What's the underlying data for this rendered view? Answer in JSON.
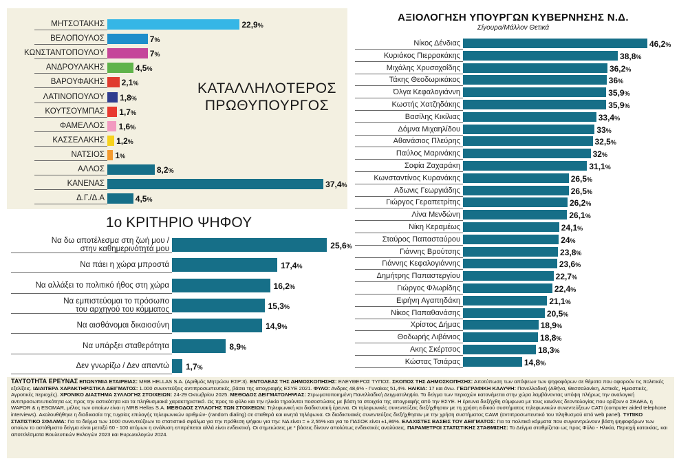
{
  "chart_data": [
    {
      "type": "bar",
      "title": "ΚΑΤΑΛΛΗΛΟΤΕΡΟΣ ΠΡΩΘΥΠΟΥΡΓΟΣ",
      "categories": [
        "ΜΗΤΣΟΤΑΚΗΣ",
        "ΒΕΛΟΠΟΥΛΟΣ",
        "ΚΩΝΣΤΑΝΤΟΠΟΥΛΟΥ",
        "ΑΝΔΡΟΥΛΑΚΗΣ",
        "ΒΑΡΟΥΦΑΚΗΣ",
        "ΛΑΤΙΝΟΠΟΥΛΟΥ",
        "ΚΟΥΤΣΟΥΜΠΑΣ",
        "ΦΑΜΕΛΛΟΣ",
        "ΚΑΣΣΕΛΑΚΗΣ",
        "ΝΑΤΣΙΟΣ",
        "ΑΛΛΟΣ",
        "ΚΑΝΕΝΑΣ",
        "Δ.Γ./Δ.Α"
      ],
      "values": [
        22.9,
        7,
        7,
        4.5,
        2.1,
        1.8,
        1.7,
        1.6,
        1.2,
        1,
        8.2,
        37.4,
        4.5
      ],
      "value_labels": [
        "22,9",
        "7",
        "7",
        "4,5",
        "2,1",
        "1,8",
        "1,7",
        "1,6",
        "1,2",
        "1",
        "8,2",
        "37,4",
        "4,5"
      ],
      "colors": [
        "#35b6e6",
        "#1f8ecb",
        "#c5459a",
        "#5fb34a",
        "#e03b2e",
        "#2f3d8f",
        "#e8392f",
        "#f29ac0",
        "#f7d21d",
        "#f39a2e",
        "#166f88",
        "#166f88",
        "#166f88"
      ],
      "ylim": [
        0,
        40
      ]
    },
    {
      "type": "bar",
      "title": "1ο ΚΡΙΤΗΡΙΟ ΨΗΦΟΥ",
      "categories": [
        "Να δω αποτέλεσμα στη ζωή μου / στην καθημερινότητά μου",
        "Να πάει η χώρα μπροστά",
        "Να αλλάξει το πολιτικό ήθος στη χώρα",
        "Να εμπιστεύομαι το πρόσωπο του αρχηγού του κόμματος",
        "Να αισθάνομαι δικαιοσύνη",
        "Να υπάρξει σταθερότητα",
        "Δεν γνωρίζω / Δεν απαντώ"
      ],
      "label_lines": [
        [
          "Να δω αποτέλεσμα στη ζωή μου /",
          "στην καθημερινότητά μου"
        ],
        [
          "Να πάει η χώρα μπροστά"
        ],
        [
          "Να αλλάξει το πολιτικό ήθος στη χώρα"
        ],
        [
          "Να εμπιστεύομαι το πρόσωπο",
          "του αρχηγού του κόμματος"
        ],
        [
          "Να αισθάνομαι δικαιοσύνη"
        ],
        [
          "Να υπάρξει σταθερότητα"
        ],
        [
          "Δεν γνωρίζω / Δεν απαντώ"
        ]
      ],
      "values": [
        25.6,
        17.4,
        16.2,
        15.3,
        14.9,
        8.9,
        1.7
      ],
      "value_labels": [
        "25,6",
        "17,4",
        "16,2",
        "15,3",
        "14,9",
        "8,9",
        "1,7"
      ],
      "color": "#166f88",
      "ylim": [
        0,
        30
      ]
    },
    {
      "type": "bar",
      "title": "ΑΞΙΟΛΟΓΗΣΗ ΥΠΟΥΡΓΩΝ ΚΥΒΕΡΝΗΣΗΣ Ν.Δ.",
      "subtitle": "Σίγουρα/Μάλλον Θετικά",
      "categories": [
        "Νίκος Δένδιας",
        "Κυριάκος Πιερρακάκης",
        "Μιχάλης Χρυσοχοΐδης",
        "Τάκης Θεοδωρικάκος",
        "Όλγα Κεφαλογιάννη",
        "Κωστής Χατζηδάκης",
        "Βασίλης Κικίλιας",
        "Δόμνα Μιχαηλίδου",
        "Αθανάσιος Πλεύρης",
        "Παύλος Μαρινάκης",
        "Σοφία Ζαχαράκη",
        "Κωνσταντίνος Κυρανάκης",
        "Αδωνις Γεωργιάδης",
        "Γιώργος Γεραπετρίτης",
        "Λίνα Μενδώνη",
        "Νίκη Κεραμέως",
        "Σταύρος Παπασταύρου",
        "Γιάννης Βρούτσης",
        "Γιάννης Κεφαλογιάννης",
        "Δημήτρης Παπαστεργίου",
        "Γιώργος Φλωρίδης",
        "Ειρήνη Αγαπηδάκη",
        "Νίκος Παπαθανάσης",
        "Χρίστος Δήμας",
        "Θοδωρής Λιβάνιος",
        "Ακης Σκέρτσος",
        "Κώστας Τσιάρας"
      ],
      "values": [
        46.2,
        38.8,
        36.2,
        36,
        35.9,
        35.9,
        33.4,
        33,
        32.5,
        32,
        31.1,
        26.5,
        26.5,
        26.2,
        26.1,
        24.1,
        24,
        23.8,
        23.6,
        22.7,
        22.4,
        21.1,
        20.5,
        18.9,
        18.8,
        18.3,
        14.8
      ],
      "value_labels": [
        "46,2",
        "38,8",
        "36,2",
        "36",
        "35,9",
        "35,9",
        "33,4",
        "33",
        "32,5",
        "32",
        "31,1",
        "26,5",
        "26,5",
        "26,2",
        "26,1",
        "24,1",
        "24",
        "23,8",
        "23,6",
        "22,7",
        "22,4",
        "21,1",
        "20,5",
        "18,9",
        "18,8",
        "18,3",
        "14,8"
      ],
      "color": "#166f88",
      "ylim": [
        0,
        50
      ]
    }
  ],
  "pct_sign": "%",
  "footer": {
    "heading": "ΤΑΥΤΟΤΗΤΑ ΕΡΕΥΝΑΣ",
    "segments": [
      [
        "b",
        "ΕΠΩΝΥΜΙΑ ΕΤΑΙΡΕΙΑΣ:"
      ],
      [
        "t",
        " MRB HELLAS S.A. (Αριθμός Μητρώου ΕΣΡ:3). "
      ],
      [
        "b",
        "ΕΝΤΟΛΕΑΣ ΤΗΣ ΔΗΜΟΣΚΟΠΗΣΗΣ:"
      ],
      [
        "t",
        " ΕΛΕΥΘΕΡΟΣ ΤΥΠΟΣ. "
      ],
      [
        "b",
        "ΣΚΟΠΟΣ ΤΗΣ ΔΗΜΟΣΚΟΠΗΣΗΣ:"
      ],
      [
        "t",
        " Αποτύπωση των απόψεων των ψηφοφόρων σε θέματα που αφορούν τις πολιτικές εξελίξεις. "
      ],
      [
        "b",
        "ΙΔΙΑΙΤΕΡΑ ΧΑΡΑΚΤΗΡΙΣΤΙΚΑ ΔΕΙΓΜΑΤΟΣ:"
      ],
      [
        "t",
        " 1.000 συνεντεύξεις αντιπροσωπευτικές, βάσει της απογραφής ΕΣΥΕ 2021. "
      ],
      [
        "b",
        "ΦΥΛΟ:"
      ],
      [
        "t",
        " Ανδρες 48,6% - Γυναίκες 51,4%. "
      ],
      [
        "b",
        "ΗΛΙΚΙΑ:"
      ],
      [
        "t",
        " 17 και άνω. "
      ],
      [
        "b",
        "ΓΕΩΓΡΑΦΙΚΗ ΚΑΛΥΨΗ:"
      ],
      [
        "t",
        " Πανελλαδική (Αθήνα, Θεσσαλονίκη, Αστικές, Ημιαστικές, Αγροτικές περιοχές). "
      ],
      [
        "b",
        "ΧΡΟΝΙΚΟ ΔΙΑΣΤΗΜΑ ΣΥΛΛΟΓΗΣ ΣΤΟΙΧΕΙΩΝ:"
      ],
      [
        "t",
        " 24-29 Οκτωβρίου 2025. "
      ],
      [
        "b",
        "ΜΕΘΟΔΟΣ ΔΕΙΓΜΑΤΟΛΗΨΙΑΣ:"
      ],
      [
        "t",
        " Στρωματοποιημένη Πανελλαδική Δειγματοληψία. Το δείγμα των περιοχών κατανέμεται στην χώρα λαμβάνοντας υπόψη πλήρως την αναλογική αντιπροσωπευτικότητα ως προς την αστικότητα και τα πληθυσμιακά χαρακτηριστικά. Ως προς το φύλο και την ηλικία τηρούνται ποσοστώσεις με βάση τα στοιχεία της απογραφής από την ΕΣΥΕ. Η έρευνα διεξήχθη σύμφωνα με τους κανόνες δεοντολογίας που ορίζουν ο ΣΕΔΕΑ, η WAPOR & η ESOMAR, μέλος των οποίων είναι η MRB Hellas S.A. "
      ],
      [
        "b",
        "ΜΕΘΟΔΟΣ ΣΥΛΛΟΓΗΣ ΤΩΝ ΣΤΟΙΧΕΙΩΝ:"
      ],
      [
        "t",
        " Τηλεφωνική και διαδικτυακή έρευνα. Οι τηλεφωνικές συνεντεύξεις διεξήχθησαν με τη χρήση ειδικού συστήματος τηλεφωνικών συνεντεύξεων CATI (computer aided telephone interviews). Ακολουθήθηκε η διαδικασία της τυχαίας επιλογής τηλεφωνικών αριθμών- (random dialing) σε σταθερά και κινητά τηλέφωνα. Οι διαδικτυακές συνεντεύξεις διεξήχθησαν με την χρήση συστήματος CAWI (αντιπροσωπευτικό του πληθυσμού από web panel). "
      ],
      [
        "b",
        "ΤΥΠΙΚΟ ΣΤΑΤΙΣΤΙΚΟ ΣΦΑΛΜΑ:"
      ],
      [
        "t",
        " Για το δείγμα των 1000 συνεντεύξεων το στατιστικό σφάλμα για την πρόθεση ψήφου για την: ΝΔ είναι = ± 2,55% και για το ΠΑΣΟΚ είναι ±1,86%. "
      ],
      [
        "b",
        "ΕΛΑΧΙΣΤΕΣ ΒΑΣΕΙΣ ΤΟΥ ΔΕΙΓΜΑΤΟΣ:"
      ],
      [
        "t",
        " Για τα πολιτικά κόμματα που συγκεντρώνουν βάση ψηφοφόρων των οποίων το αστάθμιστο δείγμα είναι μεταξύ 60 - 100 ατόμων η ανάλυση επιτρέπεται αλλά είναι ενδεικτική. Οι σημειώσεις με * βάσεις δίνουν απολύτως ενδεικτικές αναλύσεις. "
      ],
      [
        "b",
        "ΠΑΡΑΜΕΤΡΟΙ ΣΤΑΤΙΣΤΙΚΗΣ ΣΤΑΘΜΙΣΗΣ:"
      ],
      [
        "t",
        " Το Δείγμα σταθμίζεται ως προς Φύλο - Ηλικία, Περιοχή κατοικίας, και αποτελέσματα Βουλευτικών Εκλογών 2023 και Ευρωεκλογών 2024."
      ]
    ]
  }
}
